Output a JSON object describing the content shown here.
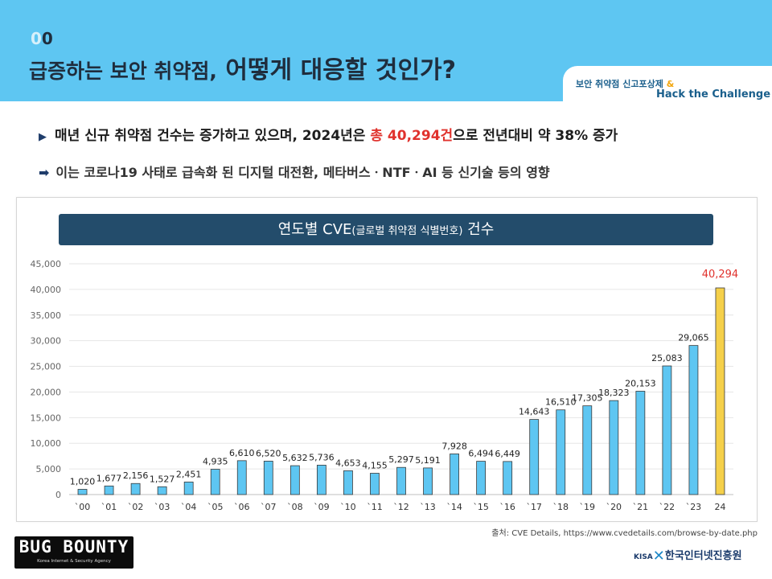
{
  "header": {
    "slide_num_dim": "0",
    "slide_num": "0",
    "title_part1": "급증하는 보안 취약점,",
    "title_part2": " 어떻게 대응할 것인가?",
    "tab_line1_a": "보안 취약점 신고포상제",
    "tab_line1_amp": " &",
    "tab_line2": "Hack the Challenge"
  },
  "bullets": {
    "b1_marker": "▶",
    "b1_pre": "매년 신규 취약점 건수는 증가하고 있으며, 2024년은 ",
    "b1_highlight": "총 40,294건",
    "b1_post": "으로 전년대비 약 38% 증가",
    "b2_marker": "➡",
    "b2_text": "이는 코로나19 사태로 급속화 된 디지털 대전환, 메타버스ㆍNTFㆍAI 등 신기술 등의 영향"
  },
  "chart_title": {
    "main1": "연도별 CVE",
    "paren": "(글로벌 취약점 식별번호)",
    "main2": " 건수"
  },
  "chart_data": {
    "type": "bar",
    "title": "연도별 CVE(글로벌 취약점 식별번호) 건수",
    "categories": [
      "`00",
      "`01",
      "`02",
      "`03",
      "`04",
      "`05",
      "`06",
      "`07",
      "`08",
      "`09",
      "`10",
      "`11",
      "`12",
      "`13",
      "`14",
      "`15",
      "`16",
      "`17",
      "`18",
      "`19",
      "`20",
      "`21",
      "`22",
      "`23",
      "24"
    ],
    "values": [
      1020,
      1677,
      2156,
      1527,
      2451,
      4935,
      6610,
      6520,
      5632,
      5736,
      4653,
      4155,
      5297,
      5191,
      7928,
      6494,
      6449,
      14643,
      16510,
      17305,
      18323,
      20153,
      25083,
      29065,
      40294
    ],
    "labels": [
      "1,020",
      "1,677",
      "2,156",
      "1,527",
      "2,451",
      "4,935",
      "6,610",
      "6,520",
      "5,632",
      "5,736",
      "4,653",
      "4,155",
      "5,297",
      "5,191",
      "7,928",
      "6,494",
      "6,449",
      "14,643",
      "16,510",
      "17,305",
      "18,323",
      "20,153",
      "25,083",
      "29,065",
      "40,294"
    ],
    "ylim": [
      0,
      45000
    ],
    "yticks": [
      "0",
      "5,000",
      "10,000",
      "15,000",
      "20,000",
      "25,000",
      "30,000",
      "35,000",
      "40,000",
      "45,000"
    ],
    "grid": true,
    "bar_color": "#5ec6f2",
    "highlight_color": "#f5d04a",
    "highlight_label_color": "#e0322d"
  },
  "source": "출처: CVE Details, https://www.cvedetails.com/browse-by-date.php",
  "logos": {
    "bug_bounty": "BUG BOUNTY",
    "bug_bounty_sub": "Korea Internet & Security Agency",
    "kisa_mark": "KISA",
    "kisa_x": "✕",
    "kisa_name": "한국인터넷진흥원"
  }
}
